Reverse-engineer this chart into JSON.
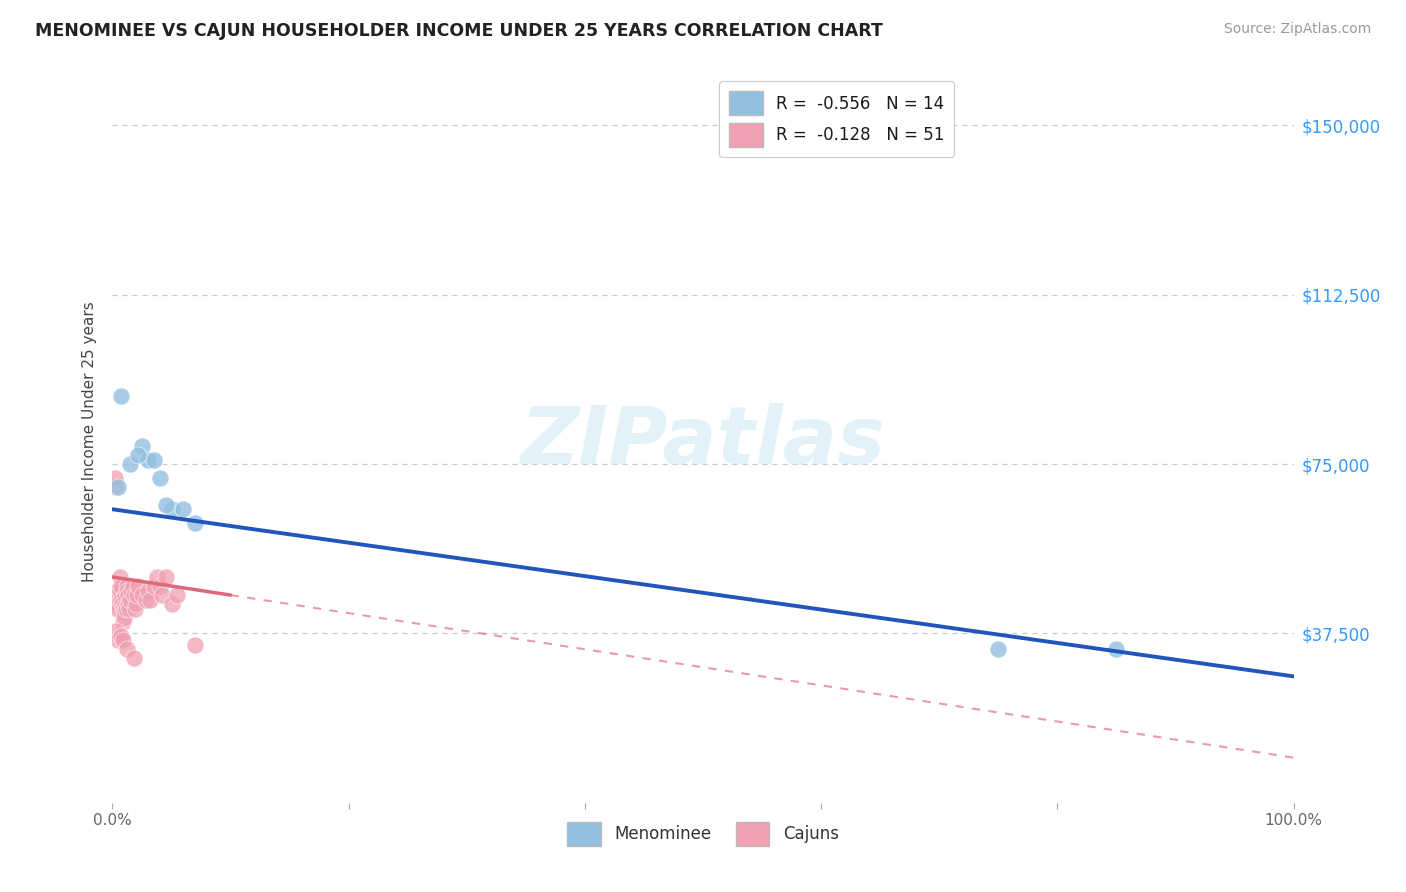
{
  "title": "MENOMINEE VS CAJUN HOUSEHOLDER INCOME UNDER 25 YEARS CORRELATION CHART",
  "source": "Source: ZipAtlas.com",
  "ylabel": "Householder Income Under 25 years",
  "ytick_labels": [
    "$37,500",
    "$75,000",
    "$112,500",
    "$150,000"
  ],
  "ytick_values": [
    37500,
    75000,
    112500,
    150000
  ],
  "legend_menominee": "R =  -0.556   N = 14",
  "legend_cajuns": "R =  -0.128   N = 51",
  "menominee_color": "#92c0e0",
  "cajuns_color": "#f0a0b0",
  "menominee_line_color": "#2255bb",
  "cajuns_line_color": "#dd6677",
  "watermark": "ZIPatlas",
  "menominee_x": [
    0.5,
    0.7,
    1.5,
    2.5,
    3.0,
    3.5,
    4.0,
    5.0,
    6.0,
    7.0,
    75.0,
    85.0,
    2.2,
    4.5
  ],
  "menominee_y": [
    70000,
    90000,
    75000,
    79000,
    76000,
    76000,
    72000,
    65000,
    65000,
    62000,
    34000,
    34000,
    77000,
    66000
  ],
  "cajuns_x": [
    0.2,
    0.25,
    0.3,
    0.35,
    0.4,
    0.45,
    0.5,
    0.55,
    0.6,
    0.65,
    0.7,
    0.75,
    0.8,
    0.85,
    0.9,
    0.95,
    1.0,
    1.05,
    1.1,
    1.15,
    1.2,
    1.25,
    1.3,
    1.35,
    1.4,
    1.5,
    1.6,
    1.7,
    1.8,
    1.9,
    2.0,
    2.1,
    2.2,
    2.5,
    2.8,
    3.0,
    3.2,
    3.5,
    3.8,
    4.0,
    4.2,
    4.5,
    5.0,
    5.5,
    0.3,
    0.5,
    0.7,
    0.9,
    1.2,
    1.8,
    7.0
  ],
  "cajuns_y": [
    70000,
    72000,
    46000,
    43000,
    47000,
    45000,
    44000,
    43000,
    50000,
    47000,
    48000,
    45000,
    44000,
    43000,
    40000,
    42000,
    41000,
    44000,
    46000,
    43000,
    48000,
    47000,
    46000,
    44000,
    43000,
    45000,
    47000,
    48000,
    46000,
    43000,
    44000,
    46000,
    48000,
    46000,
    45000,
    47000,
    45000,
    48000,
    50000,
    48000,
    46000,
    50000,
    44000,
    46000,
    38000,
    36000,
    37000,
    36000,
    34000,
    32000,
    35000
  ],
  "xmin": 0,
  "xmax": 100,
  "ymin": 0,
  "ymax": 160000,
  "xtick_minor": [
    20,
    40,
    60,
    80
  ]
}
